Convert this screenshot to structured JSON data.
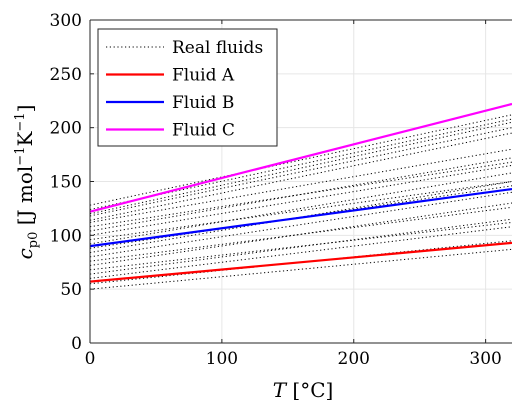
{
  "chart_data": {
    "type": "line",
    "xlabel": "T [°C]",
    "ylabel": "c_p0 [J mol^-1 K^-1]",
    "xlim": [
      0,
      320
    ],
    "ylim": [
      0,
      300
    ],
    "xticks": [
      "0",
      "100",
      "200",
      "300"
    ],
    "yticks": [
      "0",
      "50",
      "100",
      "150",
      "200",
      "250",
      "300"
    ],
    "grid": true,
    "legend_position": "top-left",
    "legend": [
      "Real fluids",
      "Fluid A",
      "Fluid B",
      "Fluid C"
    ],
    "x": [
      0,
      320
    ],
    "series": [
      {
        "name": "Fluid A",
        "color": "#ff0000",
        "style": "solid",
        "values": [
          57,
          93
        ]
      },
      {
        "name": "Fluid B",
        "color": "#0000ff",
        "style": "solid",
        "values": [
          90,
          143
        ]
      },
      {
        "name": "Fluid C",
        "color": "#ff00ff",
        "style": "solid",
        "values": [
          122,
          222
        ]
      }
    ],
    "real_fluids": {
      "name": "Real fluids",
      "color": "#000000",
      "style": "dotted",
      "lines": [
        [
          50,
          87
        ],
        [
          55,
          95
        ],
        [
          60,
          108
        ],
        [
          64,
          115
        ],
        [
          68,
          112
        ],
        [
          72,
          130
        ],
        [
          76,
          126
        ],
        [
          80,
          140
        ],
        [
          84,
          150
        ],
        [
          88,
          146
        ],
        [
          92,
          158
        ],
        [
          96,
          150
        ],
        [
          100,
          165
        ],
        [
          104,
          172
        ],
        [
          108,
          168
        ],
        [
          112,
          180
        ],
        [
          114,
          195
        ],
        [
          118,
          200
        ],
        [
          120,
          205
        ],
        [
          124,
          208
        ],
        [
          128,
          212
        ]
      ]
    }
  }
}
